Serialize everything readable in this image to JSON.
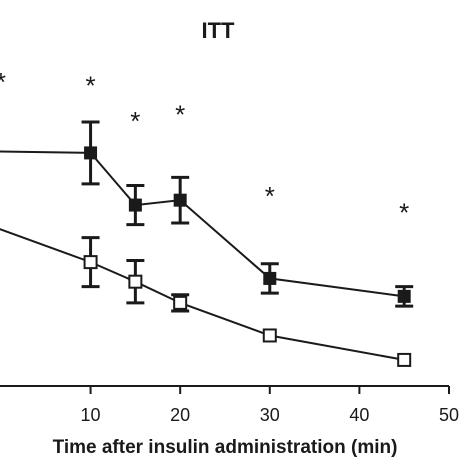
{
  "chart_data": {
    "type": "line",
    "title": "ITT",
    "xlabel": "Time after insulin administration (min)",
    "ylabel": "",
    "xlim": [
      -1,
      50
    ],
    "ylim": [
      0,
      100
    ],
    "x_ticks": [
      10,
      20,
      30,
      40,
      50
    ],
    "grid": false,
    "series": [
      {
        "marker": "filled-square",
        "color": "#1a1a1a",
        "x": [
          -2,
          10,
          15,
          20,
          30,
          45
        ],
        "y": [
          72,
          71.5,
          55.5,
          57,
          33,
          27.5
        ],
        "err": [
          null,
          9.5,
          6,
          7,
          4.5,
          3
        ]
      },
      {
        "marker": "open-square",
        "color": "#1a1a1a",
        "x": [
          -2,
          10,
          15,
          20,
          30,
          45
        ],
        "y": [
          50,
          38,
          32,
          25.5,
          15.5,
          8
        ],
        "err": [
          null,
          7.5,
          6.5,
          2.5,
          null,
          null
        ]
      }
    ],
    "annotations": [
      {
        "text": "*",
        "x": 0,
        "y": 96
      },
      {
        "text": "*",
        "x": 10,
        "y": 95
      },
      {
        "text": "*",
        "x": 15,
        "y": 84
      },
      {
        "text": "*",
        "x": 20,
        "y": 86
      },
      {
        "text": "*",
        "x": 30,
        "y": 61
      },
      {
        "text": "*",
        "x": 45,
        "y": 56
      }
    ]
  }
}
